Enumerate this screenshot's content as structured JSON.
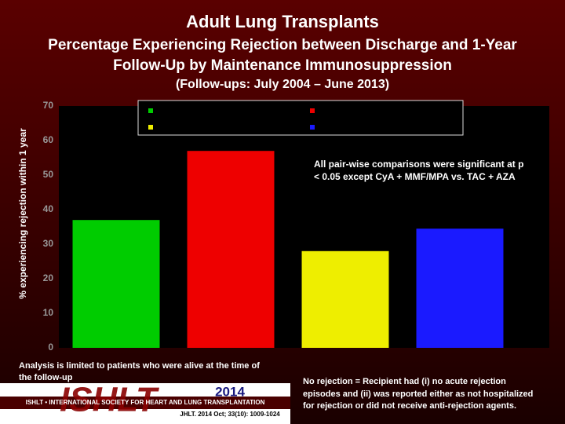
{
  "chart_data": {
    "type": "bar",
    "title": "Adult Lung Transplants",
    "subtitle": [
      "Percentage Experiencing Rejection between Discharge and 1-Year",
      "Follow-Up by Maintenance Immunosuppression"
    ],
    "period": "(Follow-ups: July 2004 – June 2013)",
    "ylabel": "% experiencing rejection within 1 year",
    "categories": [
      null,
      null,
      null,
      null
    ],
    "values": [
      37,
      57,
      28,
      34.5
    ],
    "colors": [
      "#00cc00",
      "#ee0000",
      "#eeee00",
      "#1a1aff"
    ],
    "ylim": [
      0,
      70
    ],
    "yticks": [
      0,
      10,
      20,
      30,
      40,
      50,
      60,
      70
    ],
    "annotation": [
      "All pair-wise comparisons were significant at p",
      "< 0.05 except CyA + MMF/MPA vs. TAC + AZA"
    ],
    "footnote_left": [
      "Analysis is limited to patients who were alive at the time of",
      "the follow-up"
    ],
    "footnote_right": [
      "No rejection = Recipient had (i) no acute rejection",
      "episodes and (ii) was reported either as not hospitalized",
      "for rejection or did not receive anti-rejection agents."
    ],
    "logo": "ISHLT",
    "society": "ISHLT • INTERNATIONAL SOCIETY FOR HEART AND LUNG TRANSPLANTATION",
    "year": "2014",
    "citation": "JHLT. 2014 Oct; 33(10): 1009-1024"
  }
}
